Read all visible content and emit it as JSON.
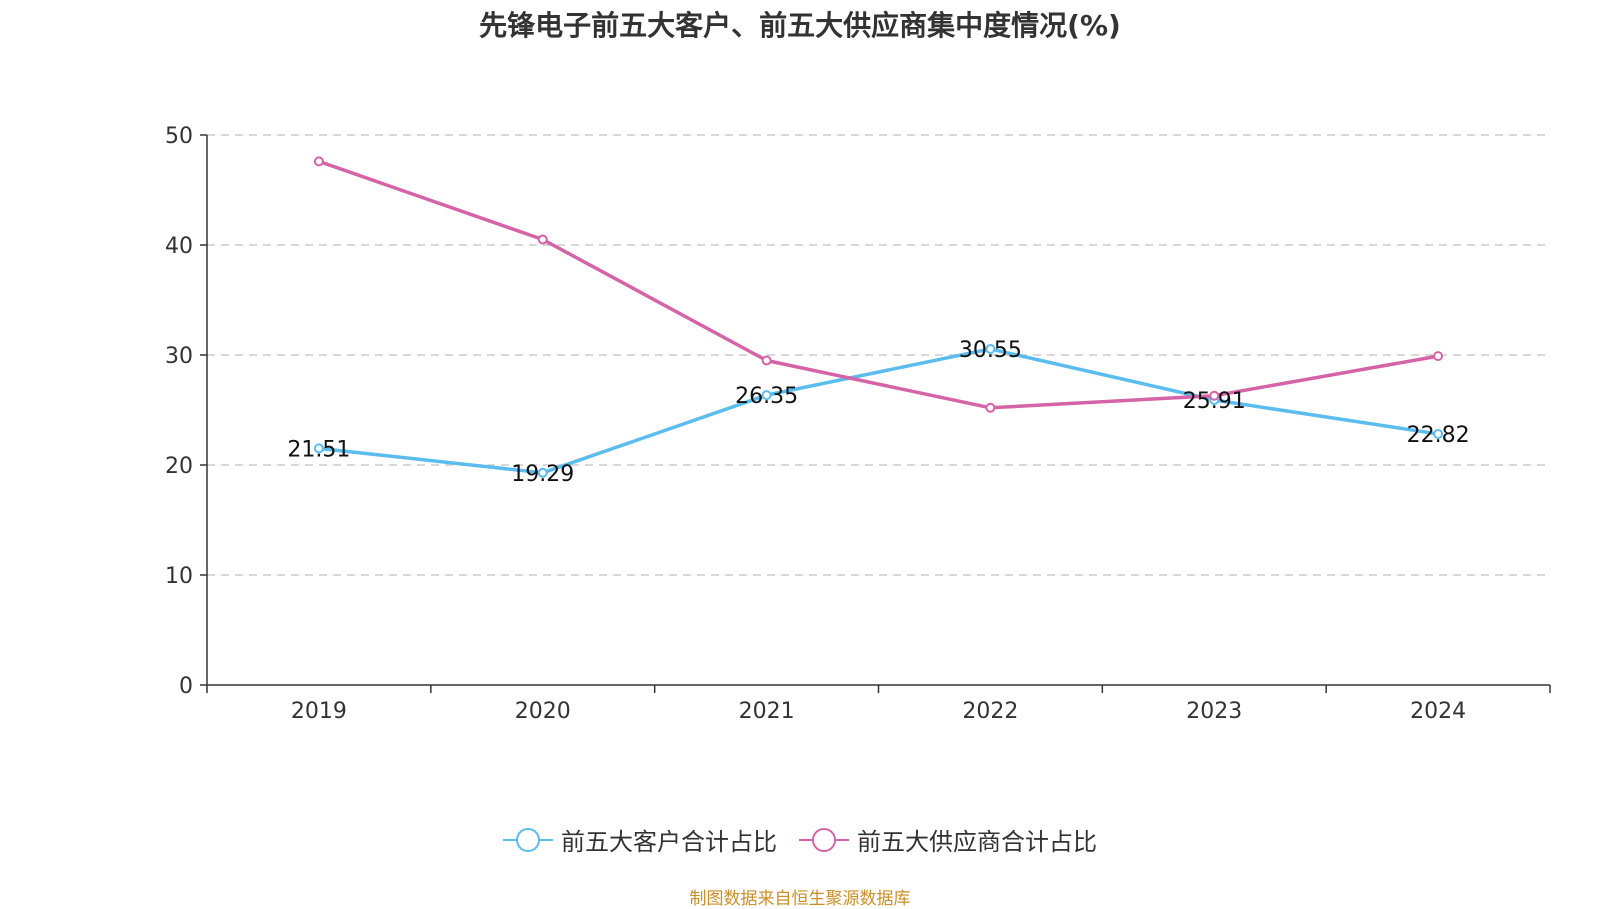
{
  "chart_data": {
    "type": "line",
    "title": "先锋电子前五大客户、前五大供应商集中度情况(%)",
    "categories": [
      "2019",
      "2020",
      "2021",
      "2022",
      "2023",
      "2024"
    ],
    "ylim": [
      0,
      50
    ],
    "yticks": [
      0,
      10,
      20,
      30,
      40,
      50
    ],
    "grid": true,
    "legend_position": "bottom",
    "series": [
      {
        "name": "前五大客户合计占比",
        "color": "#5bbcee",
        "values": [
          21.51,
          19.29,
          26.35,
          30.55,
          25.91,
          22.82
        ],
        "labels": [
          "21.51",
          "19.29",
          "26.35",
          "30.55",
          "25.91",
          "22.82"
        ]
      },
      {
        "name": "前五大供应商合计占比",
        "color": "#d563a8",
        "values": [
          47.6,
          40.5,
          29.5,
          25.2,
          26.3,
          29.9
        ],
        "labels": []
      }
    ]
  },
  "source_note": "制图数据来自恒生聚源数据库"
}
